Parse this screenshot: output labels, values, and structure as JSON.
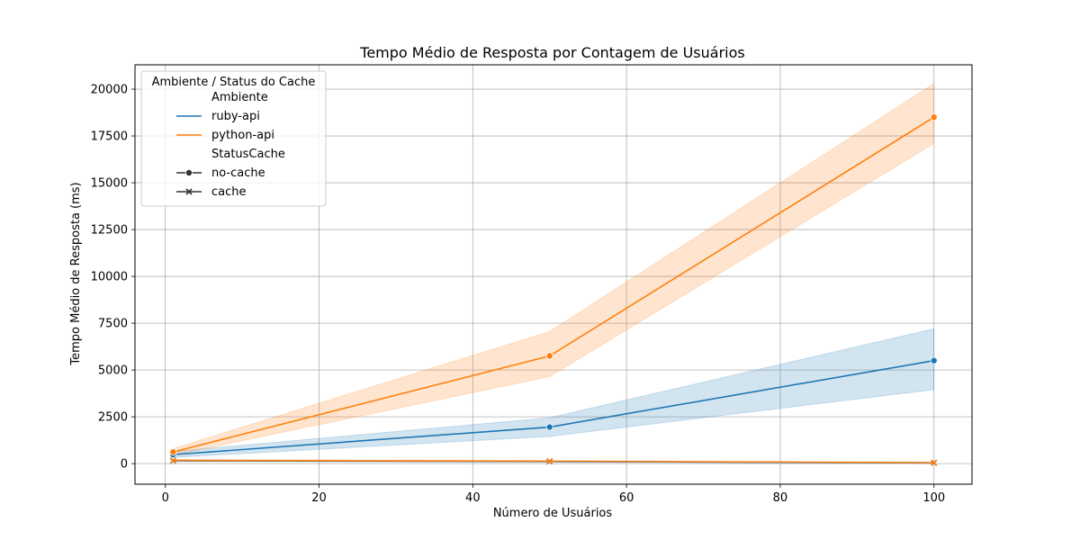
{
  "chart_data": {
    "type": "line",
    "title": "Tempo Médio de Resposta por Contagem de Usuários",
    "xlabel": "Número de Usuários",
    "ylabel": "Tempo Médio de Resposta (ms)",
    "xlim": [
      -3.95,
      104.95
    ],
    "ylim": [
      -1100,
      21300
    ],
    "xticks": [
      0,
      20,
      40,
      60,
      80,
      100
    ],
    "yticks": [
      0,
      2500,
      5000,
      7500,
      10000,
      12500,
      15000,
      17500,
      20000
    ],
    "grid": true,
    "colors": {
      "ruby-api": "#1f77b4",
      "python-api": "#ff7f0e"
    },
    "series": [
      {
        "name": "ruby-api",
        "status": "no-cache",
        "marker": "circle",
        "color": "#1f77b4",
        "x": [
          1,
          50,
          100
        ],
        "y": [
          480,
          1950,
          5500
        ],
        "ci_low": [
          330,
          1450,
          3950
        ],
        "ci_high": [
          650,
          2450,
          7200
        ]
      },
      {
        "name": "python-api",
        "status": "no-cache",
        "marker": "circle",
        "color": "#ff7f0e",
        "x": [
          1,
          50,
          100
        ],
        "y": [
          620,
          5750,
          18500
        ],
        "ci_low": [
          450,
          4650,
          17100
        ],
        "ci_high": [
          800,
          7050,
          20300
        ]
      },
      {
        "name": "ruby-api",
        "status": "cache",
        "marker": "x",
        "color": "#1f77b4",
        "x": [
          1,
          50,
          100
        ],
        "y": [
          150,
          110,
          40
        ],
        "ci_low": [
          110,
          80,
          25
        ],
        "ci_high": [
          200,
          140,
          60
        ]
      },
      {
        "name": "python-api",
        "status": "cache",
        "marker": "x",
        "color": "#ff7f0e",
        "x": [
          1,
          50,
          100
        ],
        "y": [
          170,
          130,
          50
        ],
        "ci_low": [
          130,
          100,
          30
        ],
        "ci_high": [
          210,
          160,
          70
        ]
      }
    ],
    "legend": {
      "title": "Ambiente / Status do Cache",
      "placement": "top-left",
      "entries": [
        {
          "label": "Ambiente",
          "kind": "header"
        },
        {
          "label": "ruby-api",
          "kind": "line",
          "color": "#1f77b4"
        },
        {
          "label": "python-api",
          "kind": "line",
          "color": "#ff7f0e"
        },
        {
          "label": "StatusCache",
          "kind": "header"
        },
        {
          "label": "no-cache",
          "kind": "marker",
          "marker": "circle",
          "color": "#333333"
        },
        {
          "label": "cache",
          "kind": "marker",
          "marker": "x",
          "color": "#333333"
        }
      ]
    }
  }
}
